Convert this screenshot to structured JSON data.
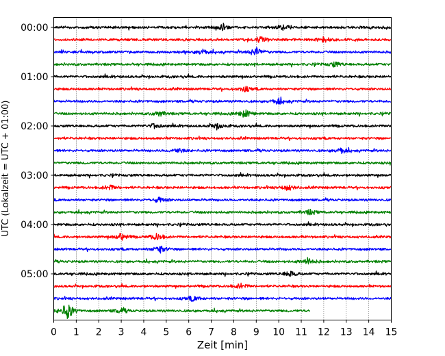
{
  "chart_data": {
    "type": "line",
    "subtype": "helicorder",
    "xlabel": "Zeit  [min]",
    "ylabel": "UTC (Lokalzeit = UTC + 01:00)",
    "xlim": [
      0,
      15
    ],
    "x_ticks": [
      "0",
      "1",
      "2",
      "3",
      "4",
      "5",
      "6",
      "7",
      "8",
      "9",
      "10",
      "11",
      "12",
      "13",
      "14",
      "15"
    ],
    "y_tick_labels": [
      "00:00",
      "01:00",
      "02:00",
      "03:00",
      "04:00",
      "05:00"
    ],
    "rows_per_hour": 4,
    "row_minutes": 15,
    "row_count": 24,
    "last_row_end_min": 11.4,
    "colors": [
      "#000000",
      "#ff0000",
      "#0000ff",
      "#008000"
    ],
    "grid": "vertical dotted every minute",
    "events": [
      {
        "row": 0,
        "min": 7.5,
        "amp": 0.35
      },
      {
        "row": 0,
        "min": 10.2,
        "amp": 0.25
      },
      {
        "row": 1,
        "min": 9.2,
        "amp": 0.35
      },
      {
        "row": 1,
        "min": 12.0,
        "amp": 0.3
      },
      {
        "row": 2,
        "min": 9.0,
        "amp": 0.55
      },
      {
        "row": 2,
        "min": 6.6,
        "amp": 0.3
      },
      {
        "row": 3,
        "min": 12.5,
        "amp": 0.3
      },
      {
        "row": 5,
        "min": 8.5,
        "amp": 0.3
      },
      {
        "row": 6,
        "min": 10.0,
        "amp": 0.35
      },
      {
        "row": 7,
        "min": 8.5,
        "amp": 0.45
      },
      {
        "row": 7,
        "min": 4.7,
        "amp": 0.3
      },
      {
        "row": 8,
        "min": 7.3,
        "amp": 0.35
      },
      {
        "row": 8,
        "min": 4.5,
        "amp": 0.3
      },
      {
        "row": 10,
        "min": 12.8,
        "amp": 0.3
      },
      {
        "row": 10,
        "min": 5.5,
        "amp": 0.3
      },
      {
        "row": 13,
        "min": 10.4,
        "amp": 0.35
      },
      {
        "row": 13,
        "min": 2.5,
        "amp": 0.3
      },
      {
        "row": 14,
        "min": 4.7,
        "amp": 0.3
      },
      {
        "row": 15,
        "min": 11.4,
        "amp": 0.3
      },
      {
        "row": 17,
        "min": 3.0,
        "amp": 0.4
      },
      {
        "row": 17,
        "min": 4.6,
        "amp": 0.4
      },
      {
        "row": 18,
        "min": 4.7,
        "amp": 0.45
      },
      {
        "row": 19,
        "min": 11.3,
        "amp": 0.4
      },
      {
        "row": 20,
        "min": 10.5,
        "amp": 0.35
      },
      {
        "row": 21,
        "min": 8.3,
        "amp": 0.3
      },
      {
        "row": 22,
        "min": 6.2,
        "amp": 0.3
      },
      {
        "row": 23,
        "min": 0.6,
        "amp": 1.0
      },
      {
        "row": 23,
        "min": 3.0,
        "amp": 0.3
      }
    ]
  }
}
